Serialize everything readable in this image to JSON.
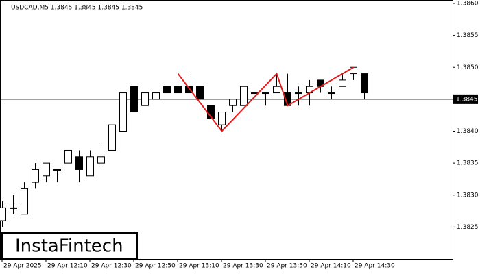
{
  "chart_data": {
    "type": "candlestick",
    "title": "USDCAD,M5  1.3845 1.3845 1.3845 1.3845",
    "categories": [
      "29 Apr 2025",
      null,
      null,
      null,
      "29 Apr 12:10",
      null,
      null,
      null,
      "29 Apr 12:30",
      null,
      null,
      null,
      "29 Apr 12:50",
      null,
      null,
      null,
      "29 Apr 13:10",
      null,
      null,
      null,
      "29 Apr 13:30",
      null,
      null,
      null,
      "29 Apr 13:50",
      null,
      null,
      null,
      "29 Apr 14:10",
      null,
      null,
      null,
      "29 Apr 14:30",
      null
    ],
    "open": [
      1.3826,
      1.3828,
      1.3827,
      1.3832,
      1.3833,
      1.3834,
      1.3835,
      1.3836,
      1.3833,
      1.3835,
      1.3837,
      1.384,
      1.3847,
      1.3844,
      1.3845,
      1.3847,
      1.3847,
      1.3847,
      1.3847,
      1.3844,
      1.3841,
      1.3844,
      1.3844,
      1.3846,
      1.3846,
      1.3846,
      1.3846,
      1.3846,
      1.3846,
      1.3848,
      1.3846,
      1.3847,
      1.3849,
      1.3849
    ],
    "high": [
      1.3829,
      1.383,
      1.3832,
      1.3835,
      1.3835,
      1.3834,
      1.3837,
      1.3837,
      1.3837,
      1.3838,
      1.3841,
      1.3846,
      1.3847,
      1.3846,
      1.3846,
      1.3847,
      1.3848,
      1.3849,
      1.3847,
      1.3844,
      1.3843,
      1.3845,
      1.3847,
      1.3846,
      1.3846,
      1.3849,
      1.3849,
      1.3847,
      1.3848,
      1.3848,
      1.3847,
      1.3849,
      1.385,
      1.3849
    ],
    "low": [
      1.3825,
      1.3827,
      1.3827,
      1.3831,
      1.3832,
      1.3832,
      1.3835,
      1.3832,
      1.3833,
      1.3834,
      1.3837,
      1.384,
      1.3843,
      1.3844,
      1.3845,
      1.3846,
      1.3846,
      1.3846,
      1.3845,
      1.3842,
      1.384,
      1.3843,
      1.3844,
      1.3846,
      1.3844,
      1.3846,
      1.3844,
      1.3844,
      1.3844,
      1.3846,
      1.3845,
      1.3847,
      1.3848,
      1.3845
    ],
    "close": [
      1.3828,
      1.3828,
      1.3831,
      1.3834,
      1.3835,
      1.3834,
      1.3837,
      1.3834,
      1.3836,
      1.3836,
      1.3841,
      1.3846,
      1.3843,
      1.3846,
      1.3846,
      1.3846,
      1.3846,
      1.3846,
      1.3845,
      1.3842,
      1.3843,
      1.3845,
      1.3847,
      1.3846,
      1.3846,
      1.3847,
      1.3844,
      1.3846,
      1.3847,
      1.3847,
      1.3846,
      1.3848,
      1.385,
      1.3846
    ],
    "up_color": "#ffffff",
    "down_color": "#000000",
    "ylim": [
      1.382,
      1.386
    ],
    "yticks": [
      1.3825,
      {
        "value": 1.383,
        "label": "1.3830"
      },
      1.3835,
      {
        "value": 1.384,
        "label": "1.3840"
      },
      {
        "value": 1.385,
        "label": "1.3850"
      },
      1.3855,
      {
        "value": 1.386,
        "label": "1.3860"
      }
    ],
    "current_price": 1.3845,
    "pattern": {
      "color": "#e41b1b",
      "x": [
        16,
        20,
        25,
        26,
        32
      ],
      "values": [
        1.3849,
        1.384,
        1.3849,
        1.3844,
        1.385
      ]
    },
    "logo": "InstaFintech"
  }
}
